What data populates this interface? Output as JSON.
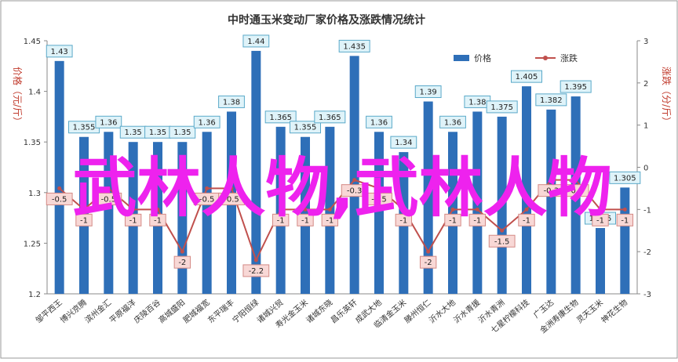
{
  "chart_data": {
    "type": "bar",
    "title": "中时通玉米变动厂家价格及涨跌情况统计",
    "ylabel": "价格（元/斤）",
    "y2label": "涨跌（分/斤）",
    "ylim": [
      1.2,
      1.45
    ],
    "y2lim": [
      -3,
      3
    ],
    "yticks": [
      "1.2",
      "1.25",
      "1.3",
      "1.35",
      "1.4",
      "1.45"
    ],
    "y2ticks": [
      "-3",
      "-2",
      "-1",
      "0",
      "1",
      "2",
      "3"
    ],
    "grid": false,
    "legend_position": "top-right",
    "categories": [
      "邹平西王",
      "博兴京腾",
      "滨州金汇",
      "平原福洋",
      "庆陵百谷",
      "高城盛阳",
      "肥城福宽",
      "东平瑞丰",
      "宁阳恒绿",
      "诸城兴贸",
      "寿光金玉米",
      "诸城东晓",
      "昌乐英轩",
      "成武大地",
      "临清金玉米",
      "滕州恒仁",
      "沂水大地",
      "沂水青援",
      "沂水青洲",
      "七星柠檬科技",
      "广玉达",
      "金洲寿康生物",
      "灵天玉米",
      "神花生物"
    ],
    "series": [
      {
        "name": "价格",
        "type": "bar",
        "color": "#2e6fb8",
        "values": [
          1.43,
          1.355,
          1.36,
          1.35,
          1.35,
          1.35,
          1.36,
          1.38,
          1.44,
          1.365,
          1.355,
          1.365,
          1.435,
          1.36,
          1.34,
          1.39,
          1.36,
          1.38,
          1.375,
          1.405,
          1.382,
          1.395,
          1.265,
          1.305
        ]
      },
      {
        "name": "涨跌",
        "type": "line",
        "axis": "right",
        "color": "#c0504d",
        "values": [
          -0.5,
          -1,
          -0.5,
          -1,
          -1,
          -2,
          -0.5,
          -0.5,
          -2.2,
          -1,
          -1,
          -1,
          -0.3,
          -0.5,
          -1,
          -2,
          -1,
          -1,
          -1.5,
          -1,
          -0.3,
          -0.3,
          -1,
          -1
        ],
        "labels": [
          "-0.5",
          "-1",
          "-0.5",
          "-1",
          "-1",
          "-2",
          "-0.5",
          "-0.5",
          "-2.2",
          "-1",
          "-1",
          "-1",
          "-0.3",
          "-0.5",
          "-1",
          "-2",
          "-1",
          "-1",
          "-1.5",
          "-1",
          "-0.3",
          "-0.3",
          "-1",
          "-1"
        ]
      }
    ]
  },
  "colors": {
    "bar": "#2e6fb8",
    "line": "#c0504d",
    "label_bg": "#dff3f9",
    "label_border": "#5aa9c9",
    "change_label_bg": "#f8d8d6",
    "change_label_border": "#d48a85",
    "overlay_text": "#ee22ee",
    "axis_label": "#c0392b"
  },
  "overlay": {
    "text": "武林人物,武林人物"
  }
}
